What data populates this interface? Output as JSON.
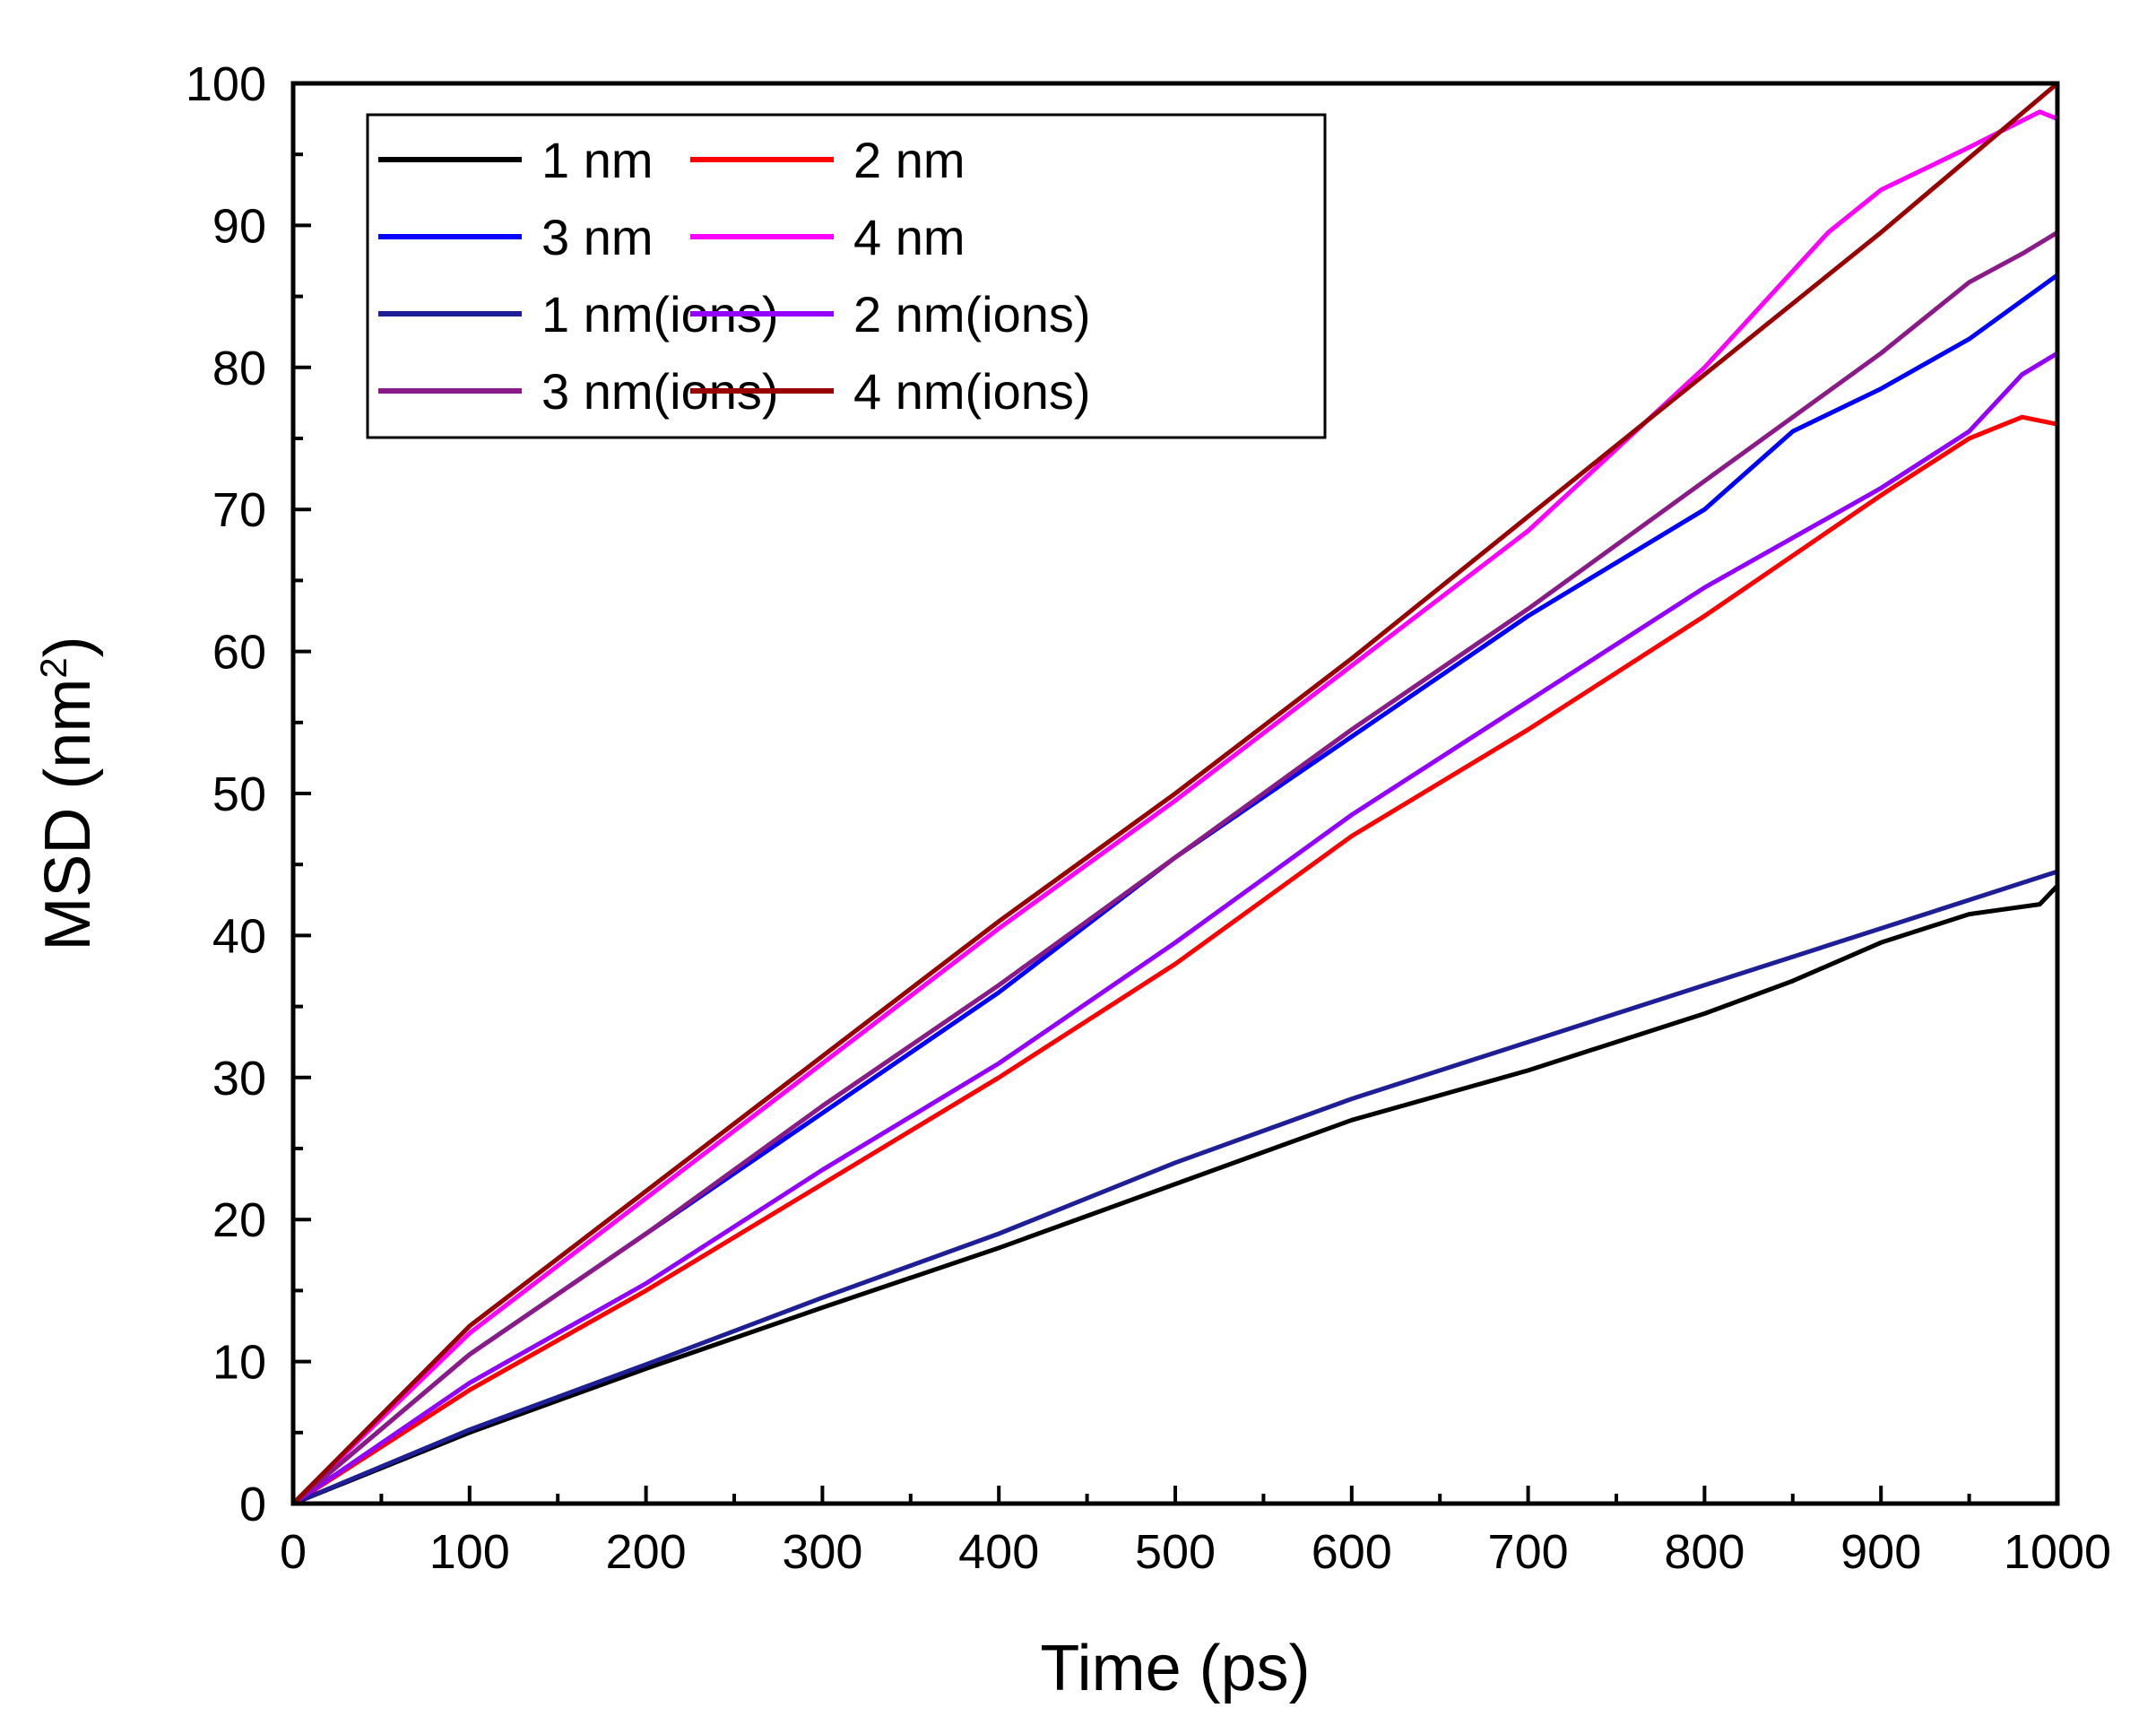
{
  "chart_data": {
    "type": "line",
    "title": "",
    "xlabel": "Time (ps)",
    "ylabel_main": "MSD (nm",
    "ylabel_sup": "2",
    "ylabel_close": ")",
    "xlim": [
      0,
      1000
    ],
    "ylim": [
      0,
      100
    ],
    "xticks": [
      0,
      100,
      200,
      300,
      400,
      500,
      600,
      700,
      800,
      900,
      1000
    ],
    "yticks": [
      0,
      10,
      20,
      30,
      40,
      50,
      60,
      70,
      80,
      90,
      100
    ],
    "grid": false,
    "legend_position": "top-left",
    "series": [
      {
        "name": "1 nm",
        "color": "#000000",
        "x": [
          0,
          100,
          200,
          300,
          400,
          500,
          600,
          700,
          800,
          850,
          900,
          950,
          990,
          1000
        ],
        "y": [
          0,
          5,
          9.5,
          13.8,
          18,
          22.5,
          27,
          30.5,
          34.5,
          36.8,
          39.5,
          41.5,
          42.2,
          43.5
        ]
      },
      {
        "name": "2 nm",
        "color": "#ff0000",
        "x": [
          0,
          100,
          200,
          300,
          400,
          500,
          600,
          700,
          800,
          900,
          950,
          980,
          1000
        ],
        "y": [
          0,
          8,
          15,
          22.5,
          30,
          38,
          47,
          54.5,
          62.5,
          71,
          75,
          76.5,
          76
        ]
      },
      {
        "name": "3 nm",
        "color": "#0000ff",
        "x": [
          0,
          100,
          200,
          300,
          400,
          500,
          600,
          700,
          800,
          850,
          900,
          950,
          1000
        ],
        "y": [
          0,
          10.5,
          19,
          27.5,
          36,
          45.5,
          54,
          62.5,
          70,
          75.5,
          78.5,
          82,
          86.5
        ]
      },
      {
        "name": "4 nm",
        "color": "#ff00ff",
        "x": [
          0,
          100,
          200,
          300,
          400,
          500,
          600,
          700,
          800,
          870,
          900,
          950,
          990,
          1000
        ],
        "y": [
          0,
          12,
          21.5,
          31,
          40.5,
          49.5,
          59,
          68.5,
          80,
          89.5,
          92.5,
          95.5,
          98,
          97.5
        ]
      },
      {
        "name": "1 nm(ions)",
        "color": "#1e1e96",
        "x": [
          0,
          100,
          200,
          300,
          400,
          500,
          600,
          700,
          800,
          900,
          1000
        ],
        "y": [
          0,
          5.2,
          9.8,
          14.5,
          19,
          24,
          28.5,
          32.5,
          36.5,
          40.5,
          44.5
        ]
      },
      {
        "name": "2 nm(ions)",
        "color": "#9400ff",
        "x": [
          0,
          100,
          200,
          300,
          400,
          500,
          600,
          700,
          800,
          900,
          950,
          980,
          1000
        ],
        "y": [
          0,
          8.5,
          15.5,
          23.5,
          31,
          39.5,
          48.5,
          56.5,
          64.5,
          71.5,
          75.5,
          79.5,
          81
        ]
      },
      {
        "name": "3 nm(ions)",
        "color": "#8b1a89",
        "x": [
          0,
          100,
          200,
          300,
          400,
          500,
          600,
          700,
          800,
          900,
          950,
          980,
          1000
        ],
        "y": [
          0,
          10.5,
          19,
          28,
          36.5,
          45.5,
          54.5,
          63,
          72,
          81,
          86,
          88,
          89.5
        ]
      },
      {
        "name": "4 nm(ions)",
        "color": "#990000",
        "x": [
          0,
          100,
          200,
          300,
          400,
          500,
          600,
          700,
          800,
          900,
          1000
        ],
        "y": [
          0,
          12.5,
          22,
          31.5,
          41,
          50,
          59.5,
          69.5,
          79.5,
          89.5,
          100
        ]
      }
    ]
  }
}
